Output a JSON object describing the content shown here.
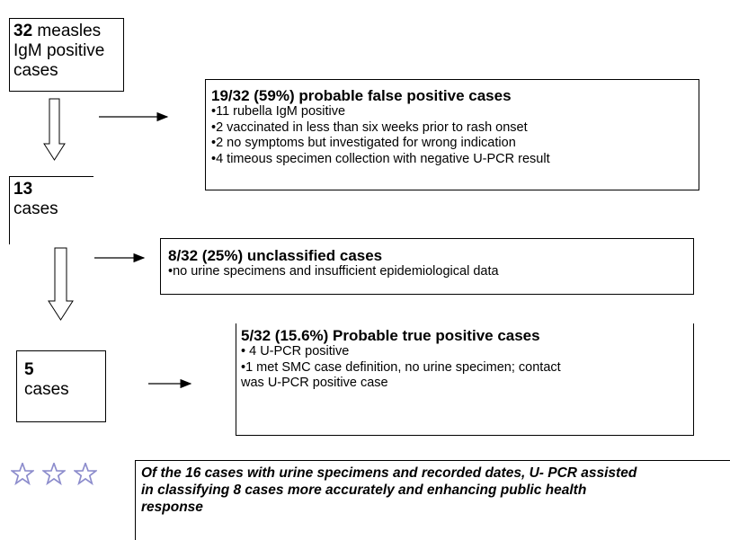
{
  "nodes": [
    {
      "number": "32",
      "label": "measles IgM positive cases",
      "lines": [
        "measles",
        "IgM positive",
        "cases"
      ]
    },
    {
      "number": "13",
      "label": "cases"
    },
    {
      "number": "5",
      "label": "cases"
    }
  ],
  "outcomes": [
    {
      "title": "19/32 (59%) probable false positive cases",
      "items": [
        "•11 rubella IgM positive",
        "•2 vaccinated in less than six weeks prior to rash onset",
        "•2 no symptoms but investigated for wrong indication",
        "•4 timeous specimen collection with negative U-PCR result"
      ]
    },
    {
      "title": "8/32 (25%) unclassified cases",
      "items": [
        "•no urine specimens and insufficient epidemiological data"
      ]
    },
    {
      "title": "5/32 (15.6%) Probable true positive cases",
      "items": [
        "• 4 U-PCR positive",
        "•1 met SMC case definition, no urine specimen; contact",
        "was U-PCR positive case"
      ]
    }
  ],
  "note": {
    "lines": [
      "Of the 16 cases with urine specimens and recorded dates, U- PCR assisted",
      "in classifying 8 cases more accurately and enhancing public health",
      "response"
    ]
  }
}
